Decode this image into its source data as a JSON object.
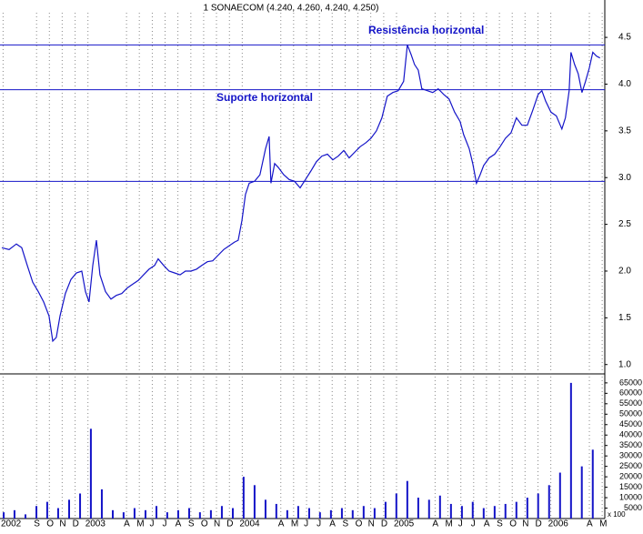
{
  "chart_data": [
    {
      "type": "line",
      "title": "1 SONAECOM (4.240, 4.260, 4.240, 4.250)",
      "color": "#1414c8",
      "xlim": [
        2002.43,
        2006.35
      ],
      "ylim": [
        0.9,
        4.9
      ],
      "yticks": [
        {
          "value": 1,
          "label": "1.0"
        },
        {
          "value": 1.5,
          "label": "1.5"
        },
        {
          "value": 2,
          "label": "2.0"
        },
        {
          "value": 2.5,
          "label": "2.5"
        },
        {
          "value": 3,
          "label": "3.0"
        },
        {
          "value": 3.5,
          "label": "3.5"
        },
        {
          "value": 4,
          "label": "4.0"
        },
        {
          "value": 4.5,
          "label": "4.5"
        }
      ],
      "xticks": [
        {
          "value": 2002.45,
          "label": "2002"
        },
        {
          "value": 2002.667,
          "label": "S"
        },
        {
          "value": 2002.75,
          "label": "O"
        },
        {
          "value": 2002.833,
          "label": "N"
        },
        {
          "value": 2002.917,
          "label": "D"
        },
        2003,
        {
          "value": 2003.25,
          "label": "A"
        },
        {
          "value": 2003.333,
          "label": "M"
        },
        {
          "value": 2003.417,
          "label": "J"
        },
        {
          "value": 2003.5,
          "label": "J"
        },
        {
          "value": 2003.583,
          "label": "A"
        },
        {
          "value": 2003.667,
          "label": "S"
        },
        {
          "value": 2003.75,
          "label": "O"
        },
        {
          "value": 2003.833,
          "label": "N"
        },
        {
          "value": 2003.917,
          "label": "D"
        },
        2004,
        {
          "value": 2004.25,
          "label": "A"
        },
        {
          "value": 2004.333,
          "label": "M"
        },
        {
          "value": 2004.417,
          "label": "J"
        },
        {
          "value": 2004.5,
          "label": "J"
        },
        {
          "value": 2004.583,
          "label": "A"
        },
        {
          "value": 2004.667,
          "label": "S"
        },
        {
          "value": 2004.75,
          "label": "O"
        },
        {
          "value": 2004.833,
          "label": "N"
        },
        {
          "value": 2004.917,
          "label": "D"
        },
        2005,
        {
          "value": 2005.25,
          "label": "A"
        },
        {
          "value": 2005.333,
          "label": "M"
        },
        {
          "value": 2005.417,
          "label": "J"
        },
        {
          "value": 2005.5,
          "label": "J"
        },
        {
          "value": 2005.583,
          "label": "A"
        },
        {
          "value": 2005.667,
          "label": "S"
        },
        {
          "value": 2005.75,
          "label": "O"
        },
        {
          "value": 2005.833,
          "label": "N"
        },
        {
          "value": 2005.917,
          "label": "D"
        },
        2006,
        {
          "value": 2006.25,
          "label": "A"
        },
        {
          "value": 2006.333,
          "label": "M"
        }
      ],
      "hlines": [
        {
          "value": 4.42,
          "label": "Resistência horizontal"
        },
        {
          "value": 3.94,
          "label": "Suporte horizontal"
        },
        {
          "value": 2.96
        }
      ],
      "x": [
        2002.442,
        2002.489,
        2002.536,
        2002.571,
        2002.607,
        2002.642,
        2002.678,
        2002.713,
        2002.748,
        2002.772,
        2002.795,
        2002.819,
        2002.854,
        2002.89,
        2002.925,
        2002.96,
        2002.984,
        2003.007,
        2003.031,
        2003.055,
        2003.078,
        2003.114,
        2003.149,
        2003.184,
        2003.22,
        2003.255,
        2003.29,
        2003.326,
        2003.361,
        2003.396,
        2003.432,
        2003.455,
        2003.491,
        2003.526,
        2003.561,
        2003.597,
        2003.632,
        2003.668,
        2003.703,
        2003.738,
        2003.774,
        2003.809,
        2003.844,
        2003.88,
        2003.915,
        2003.95,
        2003.974,
        2003.998,
        2004.021,
        2004.045,
        2004.08,
        2004.115,
        2004.151,
        2004.174,
        2004.186,
        2004.21,
        2004.233,
        2004.269,
        2004.304,
        2004.339,
        2004.375,
        2004.41,
        2004.445,
        2004.481,
        2004.516,
        2004.552,
        2004.587,
        2004.622,
        2004.658,
        2004.693,
        2004.728,
        2004.764,
        2004.799,
        2004.834,
        2004.87,
        2004.905,
        2004.94,
        2004.976,
        2005.011,
        2005.046,
        2005.07,
        2005.094,
        2005.117,
        2005.141,
        2005.164,
        2005.2,
        2005.235,
        2005.27,
        2005.306,
        2005.341,
        2005.377,
        2005.412,
        2005.435,
        2005.471,
        2005.494,
        2005.518,
        2005.542,
        2005.565,
        2005.6,
        2005.636,
        2005.671,
        2005.706,
        2005.742,
        2005.777,
        2005.813,
        2005.848,
        2005.883,
        2005.918,
        2005.942,
        2005.966,
        2006.001,
        2006.036,
        2006.072,
        2006.095,
        2006.119,
        2006.131,
        2006.154,
        2006.178,
        2006.202,
        2006.225,
        2006.249,
        2006.272,
        2006.296,
        2006.319
      ],
      "values": [
        2.25,
        2.23,
        2.29,
        2.25,
        2.06,
        1.88,
        1.78,
        1.67,
        1.52,
        1.25,
        1.29,
        1.52,
        1.76,
        1.91,
        1.98,
        2.0,
        1.78,
        1.67,
        2.06,
        2.33,
        1.96,
        1.78,
        1.7,
        1.74,
        1.76,
        1.82,
        1.86,
        1.9,
        1.96,
        2.02,
        2.06,
        2.13,
        2.06,
        2.0,
        1.98,
        1.96,
        2.0,
        2.0,
        2.02,
        2.06,
        2.1,
        2.11,
        2.17,
        2.23,
        2.27,
        2.31,
        2.33,
        2.54,
        2.82,
        2.94,
        2.96,
        3.03,
        3.31,
        3.44,
        2.94,
        3.15,
        3.11,
        3.03,
        2.98,
        2.96,
        2.89,
        2.98,
        3.07,
        3.17,
        3.23,
        3.25,
        3.19,
        3.23,
        3.29,
        3.21,
        3.27,
        3.33,
        3.37,
        3.42,
        3.5,
        3.64,
        3.87,
        3.91,
        3.93,
        4.03,
        4.42,
        4.32,
        4.21,
        4.15,
        3.95,
        3.93,
        3.91,
        3.95,
        3.89,
        3.84,
        3.7,
        3.6,
        3.46,
        3.31,
        3.15,
        2.94,
        3.03,
        3.13,
        3.21,
        3.25,
        3.33,
        3.42,
        3.48,
        3.64,
        3.56,
        3.56,
        3.72,
        3.89,
        3.93,
        3.82,
        3.7,
        3.66,
        3.52,
        3.64,
        3.93,
        4.34,
        4.21,
        4.11,
        3.91,
        4.03,
        4.17,
        4.34,
        4.3,
        4.28
      ]
    },
    {
      "type": "bar",
      "color": "#1414c8",
      "y_unit_label": "x 100",
      "xlim": [
        2002.43,
        2006.35
      ],
      "ylim": [
        0,
        68000
      ],
      "yticks": [
        5000,
        10000,
        15000,
        20000,
        25000,
        30000,
        35000,
        40000,
        45000,
        50000,
        55000,
        60000,
        65000
      ],
      "x": [
        2002.454,
        2002.524,
        2002.595,
        2002.666,
        2002.736,
        2002.807,
        2002.878,
        2002.949,
        2003.019,
        2003.09,
        2003.161,
        2003.231,
        2003.302,
        2003.373,
        2003.444,
        2003.514,
        2003.585,
        2003.656,
        2003.726,
        2003.797,
        2003.868,
        2003.939,
        2004.009,
        2004.08,
        2004.151,
        2004.221,
        2004.292,
        2004.363,
        2004.434,
        2004.504,
        2004.575,
        2004.646,
        2004.716,
        2004.787,
        2004.858,
        2004.929,
        2004.999,
        2005.07,
        2005.141,
        2005.211,
        2005.282,
        2005.353,
        2005.424,
        2005.494,
        2005.565,
        2005.636,
        2005.706,
        2005.777,
        2005.848,
        2005.918,
        2005.989,
        2006.06,
        2006.131,
        2006.201,
        2006.272
      ],
      "values": [
        3000,
        4000,
        2000,
        6000,
        8000,
        5000,
        9000,
        12000,
        43000,
        14000,
        4000,
        3000,
        5000,
        4000,
        6000,
        3000,
        4000,
        5000,
        3000,
        4000,
        6000,
        5000,
        20000,
        16000,
        9000,
        7000,
        4000,
        6000,
        5000,
        3000,
        4000,
        5000,
        4000,
        6000,
        5000,
        8000,
        12000,
        18000,
        10000,
        9000,
        11000,
        7000,
        6000,
        8000,
        5000,
        6000,
        7000,
        8000,
        10000,
        12000,
        16000,
        22000,
        65000,
        25000,
        33000
      ]
    }
  ]
}
